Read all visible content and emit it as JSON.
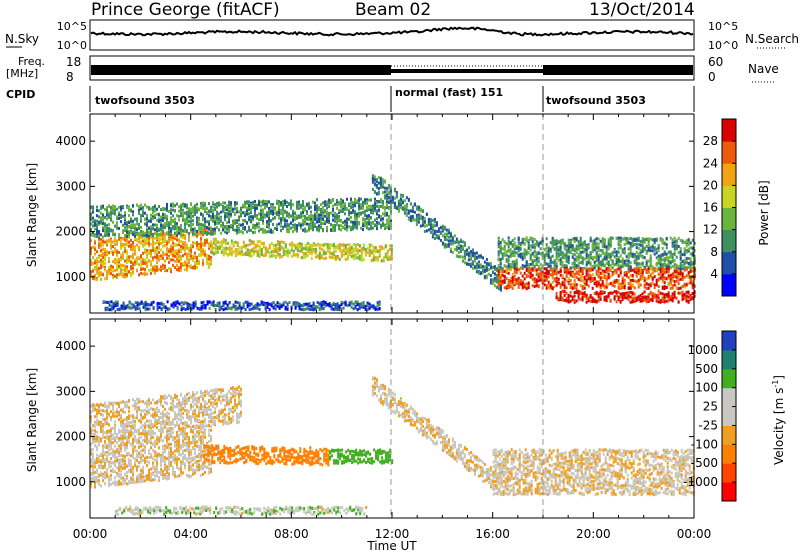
{
  "header": {
    "station": "Prince George (fitACF)",
    "beam": "Beam 02",
    "date": "13/Oct/2014"
  },
  "strips": {
    "nsky_label": "N.Sky",
    "nsky_ticks": [
      "10^5",
      "10^0"
    ],
    "nsearch_label": "N.Search",
    "nsearch_ticks": [
      "10^5",
      "10^0"
    ],
    "freq_label": "Freq.",
    "freq_unit": "[MHz]",
    "freq_ticks": [
      "18",
      "8"
    ],
    "nave_label": "Nave",
    "nave_ticks": [
      "60",
      "0"
    ],
    "cpid_label": "CPID",
    "cpid_segments": [
      {
        "label": "twofsound 3503",
        "start_hour": 0,
        "end_hour": 12
      },
      {
        "label": "normal (fast) 151",
        "start_hour": 12,
        "end_hour": 18
      },
      {
        "label": "twofsound 3503",
        "start_hour": 18,
        "end_hour": 24
      }
    ]
  },
  "axes": {
    "ylabel": "Slant Range [km]",
    "xlabel": "Time UT",
    "x_ticks": [
      "00:00",
      "04:00",
      "08:00",
      "12:00",
      "16:00",
      "20:00",
      "00:00"
    ],
    "y_ticks": [
      "1000",
      "2000",
      "3000",
      "4000"
    ],
    "dashed_time_markers": [
      12,
      18
    ]
  },
  "chart_data": [
    {
      "type": "heatmap",
      "panel": "power",
      "x_range_hours": [
        0,
        24
      ],
      "ylim": [
        200,
        4600
      ],
      "colorbar_label": "Power [dB]",
      "colorbar_ticks": [
        "28",
        "24",
        "20",
        "16",
        "12",
        "8",
        "4"
      ],
      "colorbar_range": [
        0,
        32
      ],
      "colors": [
        "#0000ff",
        "#1f4fa8",
        "#3f8f60",
        "#6ab53b",
        "#c7d522",
        "#f0a414",
        "#ee5a0a",
        "#d90000"
      ],
      "bands": [
        {
          "start": 0.0,
          "end": 4.8,
          "r_start": 1350,
          "r_end": 1650,
          "width": 900,
          "power": 22
        },
        {
          "start": 4.8,
          "end": 12.0,
          "r_start": 1650,
          "r_end": 1500,
          "width": 350,
          "power": 18
        },
        {
          "start": 0.0,
          "end": 12.0,
          "r_start": 2200,
          "r_end": 2400,
          "width": 700,
          "power": 11
        },
        {
          "start": 11.2,
          "end": 16.3,
          "r_start": 3100,
          "r_end": 900,
          "width": 450,
          "power": 9
        },
        {
          "start": 16.2,
          "end": 24.0,
          "r_start": 1500,
          "r_end": 1500,
          "width": 700,
          "power": 11
        },
        {
          "start": 16.2,
          "end": 24.0,
          "r_start": 950,
          "r_end": 950,
          "width": 450,
          "power": 27
        },
        {
          "start": 18.5,
          "end": 24.0,
          "r_start": 550,
          "r_end": 550,
          "width": 250,
          "power": 30
        },
        {
          "start": 0.5,
          "end": 11.5,
          "r_start": 350,
          "r_end": 350,
          "width": 180,
          "power": 6
        }
      ]
    },
    {
      "type": "heatmap",
      "panel": "velocity",
      "x_range_hours": [
        0,
        24
      ],
      "ylim": [
        200,
        4600
      ],
      "colorbar_label": "Velocity [m s^-1]",
      "colorbar_ticks": [
        "1000",
        "500",
        "100",
        "25",
        "-25",
        "-100",
        "-500",
        "-1000"
      ],
      "colorbar_range": [
        -1200,
        1200
      ],
      "colors": [
        "#ff0000",
        "#ff4400",
        "#ff8000",
        "#f0a020",
        "#c8c8c0",
        "#c8c8c0",
        "#40b020",
        "#208070",
        "#2040c0"
      ],
      "bands": [
        {
          "start": 0.0,
          "end": 4.8,
          "r_start": 1400,
          "r_end": 1700,
          "width": 1100,
          "velocity": 0
        },
        {
          "start": 0.0,
          "end": 6.0,
          "r_start": 2300,
          "r_end": 2700,
          "width": 800,
          "velocity": 0
        },
        {
          "start": 4.5,
          "end": 9.5,
          "r_start": 1600,
          "r_end": 1550,
          "width": 380,
          "velocity": -350
        },
        {
          "start": 9.5,
          "end": 12.0,
          "r_start": 1550,
          "r_end": 1550,
          "width": 300,
          "velocity": 250
        },
        {
          "start": 11.2,
          "end": 16.3,
          "r_start": 3100,
          "r_end": 900,
          "width": 450,
          "velocity": 0
        },
        {
          "start": 16.0,
          "end": 24.0,
          "r_start": 1200,
          "r_end": 1200,
          "width": 1000,
          "velocity": 0
        },
        {
          "start": 1.0,
          "end": 11.0,
          "r_start": 350,
          "r_end": 350,
          "width": 160,
          "velocity": 60
        }
      ]
    }
  ]
}
